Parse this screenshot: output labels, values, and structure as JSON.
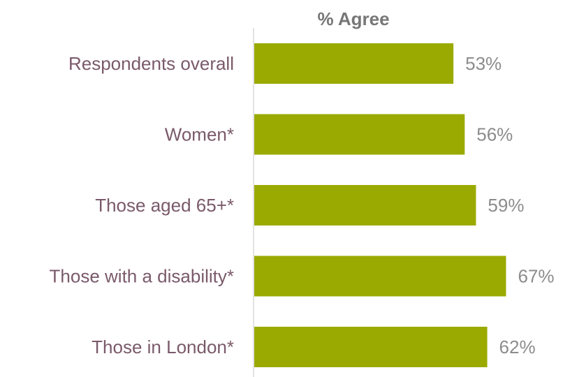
{
  "chart_data": {
    "type": "bar",
    "orientation": "horizontal",
    "title": "% Agree",
    "categories": [
      "Respondents overall",
      "Women*",
      "Those aged 65+*",
      "Those with a disability*",
      "Those in London*"
    ],
    "values": [
      53,
      56,
      59,
      67,
      62
    ],
    "data_labels": [
      "53%",
      "56%",
      "59%",
      "67%",
      "62%"
    ],
    "xlim": [
      0,
      100
    ],
    "grid": false,
    "legend": "none",
    "colors": {
      "bar": "#9aaa00",
      "category_label": "#7a5a6a",
      "value_label": "#8c8c8c",
      "title": "#777777",
      "axis": "#d9d9d9"
    }
  }
}
